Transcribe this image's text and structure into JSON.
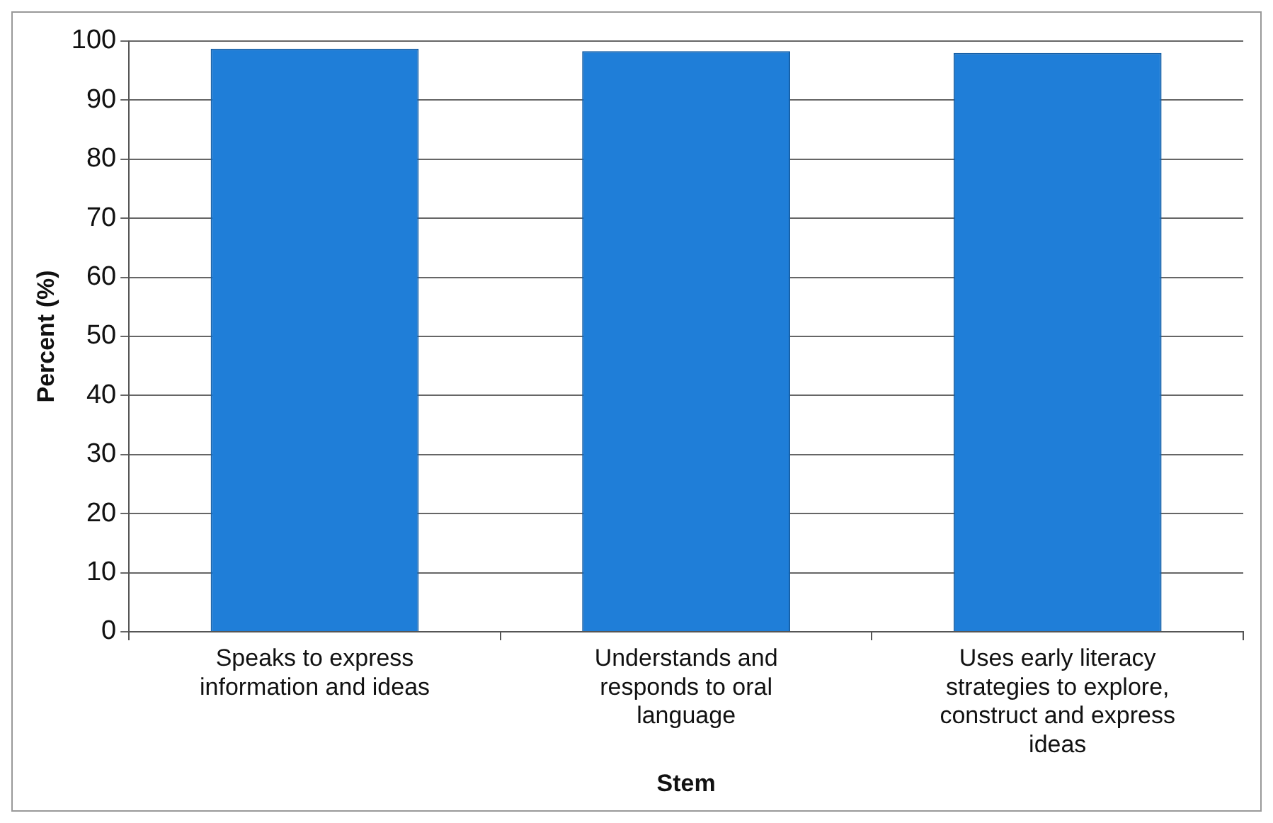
{
  "chart_data": {
    "type": "bar",
    "xlabel": "Stem",
    "ylabel": "Percent (%)",
    "categories": [
      "Speaks to express information and ideas",
      "Understands and responds to oral language",
      "Uses early literacy strategies to explore, construct and express ideas"
    ],
    "values": [
      98.7,
      98.3,
      98
    ],
    "color": "#1f7ed8",
    "ylim": [
      0,
      100
    ],
    "yticks": [
      0,
      10,
      20,
      30,
      40,
      50,
      60,
      70,
      80,
      90,
      100
    ],
    "grid": "y"
  }
}
